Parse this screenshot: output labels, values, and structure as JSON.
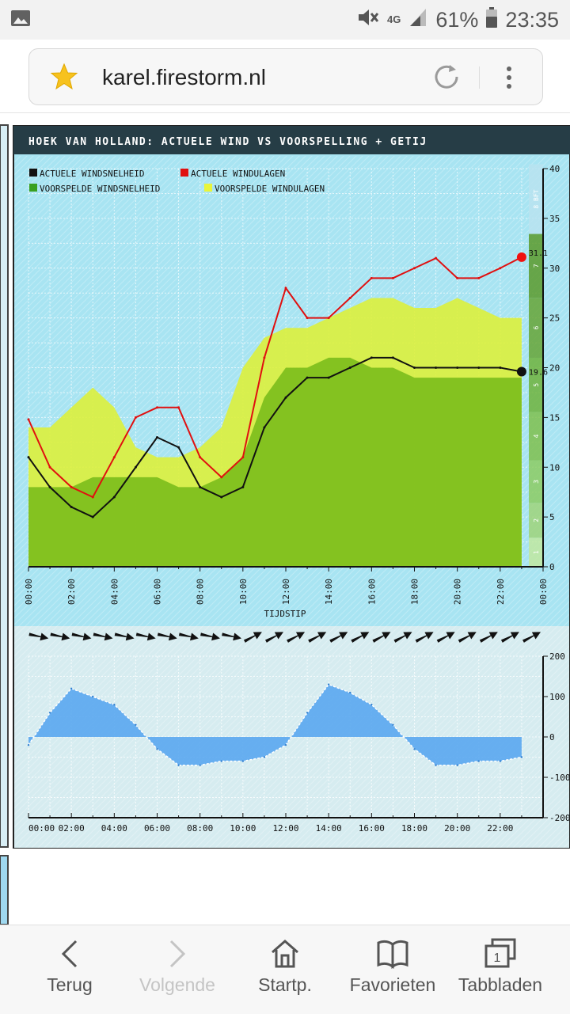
{
  "status_bar": {
    "battery": "61%",
    "time": "23:35",
    "network": "4G"
  },
  "browser": {
    "url": "karel.firestorm.nl"
  },
  "chart": {
    "title": "HOEK VAN HOLLAND: ACTUELE WIND VS VOORSPELLING + GETIJ",
    "legend": [
      "ACTUELE WINDSNELHEID",
      "ACTUELE WINDULAGEN",
      "VOORSPELDE WINDSNELHEID",
      "VOORSPELDE WINDULAGEN"
    ],
    "xlabel": "TIJDSTIP",
    "time_ticks": [
      "00:00",
      "02:00",
      "04:00",
      "06:00",
      "08:00",
      "10:00",
      "12:00",
      "14:00",
      "16:00",
      "18:00",
      "20:00",
      "22:00",
      "00:00"
    ],
    "y_ticks": [
      "0",
      "5",
      "10",
      "15",
      "20",
      "25",
      "30",
      "35",
      "40"
    ],
    "bft_ticks": [
      "1",
      "2",
      "3",
      "4",
      "5",
      "6",
      "7",
      "8 BFT"
    ],
    "gust_current": "31.1",
    "speed_current": "19.6",
    "tide_ticks": [
      "200",
      "100",
      "0",
      "-100",
      "-200"
    ],
    "tide_time_ticks": [
      "00:00",
      "02:00",
      "04:00",
      "06:00",
      "08:00",
      "10:00",
      "12:00",
      "14:00",
      "16:00",
      "18:00",
      "20:00",
      "22:00"
    ]
  },
  "chart_data": [
    {
      "type": "line",
      "title": "HOEK VAN HOLLAND: ACTUELE WIND VS VOORSPELLING + GETIJ",
      "xlabel": "TIJDSTIP",
      "ylabel": "",
      "ylim": [
        0,
        40
      ],
      "x": [
        0,
        1,
        2,
        3,
        4,
        5,
        6,
        7,
        8,
        9,
        10,
        11,
        12,
        13,
        14,
        15,
        16,
        17,
        18,
        19,
        20,
        21,
        22,
        23
      ],
      "series": [
        {
          "name": "ACTUELE WINDSNELHEID",
          "color": "#111111",
          "values": [
            11,
            8,
            6,
            5,
            7,
            10,
            13,
            12,
            8,
            7,
            8,
            14,
            17,
            19,
            19,
            20,
            21,
            21,
            20,
            20,
            20,
            20,
            20,
            19.6
          ]
        },
        {
          "name": "ACTUELE WINDULAGEN",
          "color": "#e01010",
          "values": [
            14.8,
            10,
            8,
            7,
            11,
            15,
            16,
            16,
            11,
            9,
            11,
            21,
            28,
            25,
            25,
            27,
            29,
            29,
            30,
            31,
            29,
            29,
            30,
            31.1
          ]
        },
        {
          "name": "VOORSPELDE WINDSNELHEID",
          "color": "#7fbf1e",
          "values": [
            8,
            8,
            8,
            9,
            9,
            9,
            9,
            8,
            8,
            9,
            11,
            17,
            20,
            20,
            21,
            21,
            20,
            20,
            19,
            19,
            19,
            19,
            19,
            19
          ]
        },
        {
          "name": "VOORSPELDE WINDULAGEN",
          "color": "#dcf03c",
          "values": [
            14,
            14,
            16,
            18,
            16,
            12,
            11,
            11,
            12,
            14,
            20,
            23,
            24,
            24,
            25,
            26,
            27,
            27,
            26,
            26,
            27,
            26,
            25,
            25
          ]
        }
      ],
      "grid": true,
      "legend_position": "top-left"
    },
    {
      "type": "area",
      "title": "",
      "xlabel": "",
      "ylabel": "",
      "ylim": [
        -200,
        200
      ],
      "x": [
        0,
        1,
        2,
        3,
        4,
        5,
        6,
        7,
        8,
        9,
        10,
        11,
        12,
        13,
        14,
        15,
        16,
        17,
        18,
        19,
        20,
        21,
        22,
        23
      ],
      "series": [
        {
          "name": "",
          "color": "#5aa7f0",
          "values": [
            -20,
            60,
            120,
            100,
            80,
            30,
            -30,
            -70,
            -70,
            -60,
            -60,
            -50,
            -20,
            60,
            130,
            110,
            80,
            30,
            -30,
            -70,
            -70,
            -60,
            -60,
            -50
          ]
        }
      ],
      "grid": true
    }
  ],
  "bottom_nav": [
    "Terug",
    "Volgende",
    "Startp.",
    "Favorieten",
    "Tabbladen"
  ],
  "tab_count": "1"
}
